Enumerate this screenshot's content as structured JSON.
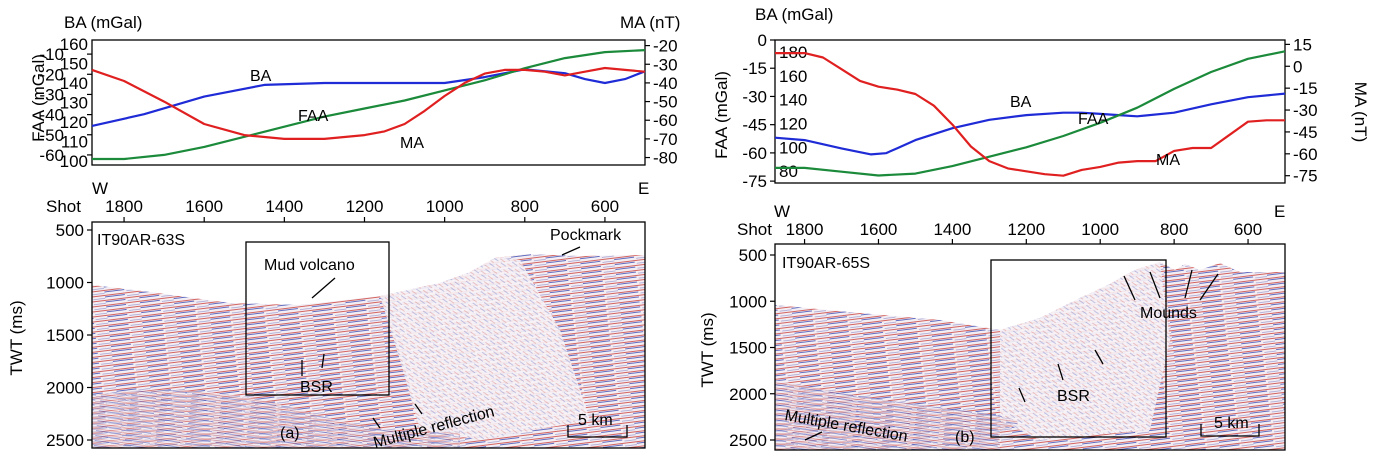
{
  "chart_data": [
    {
      "type": "line",
      "panel": "a",
      "left_axis_outer": {
        "label": "BA (mGal)",
        "ticks": [
          160,
          150,
          140,
          130,
          120,
          110,
          100
        ],
        "range": [
          98,
          162
        ]
      },
      "left_axis_inner": {
        "label": "FAA (mGal)",
        "ticks": [
          -10,
          -20,
          -30,
          -40,
          -50,
          -60
        ],
        "range": [
          -65,
          -3
        ]
      },
      "right_axis": {
        "label": "MA (nT)",
        "ticks": [
          -20,
          -30,
          -40,
          -50,
          -60,
          -70,
          -80
        ],
        "range": [
          -84,
          -17
        ]
      },
      "x_axis": {
        "label": "Shot",
        "ticks": [
          1800,
          1600,
          1400,
          1200,
          1000,
          800,
          600
        ],
        "range": [
          1880,
          500
        ],
        "west": "W",
        "east": "E"
      },
      "series": [
        {
          "name": "BA",
          "color": "#1f2bd6",
          "axis": "ba",
          "x": [
            1880,
            1750,
            1600,
            1450,
            1300,
            1150,
            1000,
            900,
            800,
            700,
            650,
            600,
            550,
            500
          ],
          "values": [
            118,
            124,
            133,
            139,
            140,
            140,
            140,
            143,
            147,
            145,
            142,
            140,
            142,
            146
          ]
        },
        {
          "name": "FAA",
          "color": "#1b8a3a",
          "axis": "faa",
          "x": [
            1880,
            1800,
            1700,
            1600,
            1500,
            1400,
            1300,
            1200,
            1100,
            1000,
            900,
            800,
            700,
            600,
            500
          ],
          "values": [
            -62,
            -62,
            -60,
            -56,
            -51,
            -46,
            -41,
            -37,
            -33,
            -28,
            -23,
            -17,
            -12,
            -9,
            -8
          ]
        },
        {
          "name": "MA",
          "color": "#e02020",
          "axis": "ma",
          "x": [
            1880,
            1800,
            1700,
            1600,
            1500,
            1400,
            1300,
            1200,
            1150,
            1100,
            1050,
            1000,
            950,
            900,
            850,
            800,
            750,
            700,
            650,
            600,
            550,
            500
          ],
          "values": [
            -33,
            -39,
            -50,
            -62,
            -68,
            -70,
            -70,
            -68,
            -66,
            -62,
            -55,
            -47,
            -40,
            -35,
            -33,
            -33,
            -34,
            -36,
            -34,
            -32,
            -33,
            -34
          ]
        }
      ],
      "curve_labels": [
        "BA",
        "FAA",
        "MA"
      ],
      "seismic": {
        "line_id": "IT90AR-63S",
        "y_axis": {
          "label": "TWT (ms)",
          "ticks": [
            500,
            1000,
            1500,
            2000,
            2500
          ]
        },
        "annotations": [
          "Pockmark",
          "Mud volcano",
          "BSR",
          "Multiple reflection"
        ],
        "scale_bar": "5 km",
        "panel_label": "(a)"
      }
    },
    {
      "type": "line",
      "panel": "b",
      "left_axis_outer": {
        "label": "BA (mGal)",
        "ticks": [
          180,
          160,
          140,
          120,
          100,
          80
        ],
        "range": [
          70,
          190
        ]
      },
      "left_axis_inner": {
        "label": "FAA (mGal)",
        "ticks": [
          0,
          -15,
          -30,
          -45,
          -60,
          -75
        ],
        "range": [
          -76,
          0
        ]
      },
      "right_axis": {
        "label": "MA (nT)",
        "ticks": [
          15,
          0,
          -15,
          -30,
          -45,
          -60,
          -75
        ],
        "range": [
          -80,
          18
        ]
      },
      "x_axis": {
        "label": "Shot",
        "ticks": [
          1800,
          1600,
          1400,
          1200,
          1000,
          800,
          600
        ],
        "range": [
          1880,
          500
        ],
        "west": "W",
        "east": "E"
      },
      "series": [
        {
          "name": "BA",
          "color": "#1f2bd6",
          "axis": "ba",
          "x": [
            1880,
            1800,
            1700,
            1620,
            1580,
            1550,
            1500,
            1400,
            1300,
            1200,
            1100,
            1050,
            1000,
            950,
            900,
            800,
            700,
            600,
            500
          ],
          "values": [
            108,
            106,
            99,
            94,
            95,
            99,
            106,
            116,
            123,
            127,
            129,
            129,
            128,
            127,
            126,
            129,
            136,
            142,
            145
          ]
        },
        {
          "name": "FAA",
          "color": "#1b8a3a",
          "axis": "faa",
          "x": [
            1880,
            1800,
            1700,
            1600,
            1500,
            1400,
            1300,
            1200,
            1100,
            1000,
            900,
            800,
            700,
            600,
            500
          ],
          "values": [
            -68,
            -68,
            -70,
            -72,
            -71,
            -67,
            -62,
            -57,
            -51,
            -44,
            -36,
            -26,
            -17,
            -10,
            -6
          ]
        },
        {
          "name": "MA",
          "color": "#e02020",
          "axis": "ma",
          "x": [
            1880,
            1800,
            1750,
            1700,
            1650,
            1600,
            1550,
            1500,
            1450,
            1400,
            1350,
            1300,
            1250,
            1200,
            1150,
            1100,
            1050,
            1000,
            950,
            900,
            850,
            800,
            750,
            700,
            650,
            600,
            550,
            500
          ],
          "values": [
            9,
            9,
            6,
            -2,
            -10,
            -14,
            -16,
            -19,
            -27,
            -40,
            -55,
            -65,
            -70,
            -72,
            -74,
            -75,
            -71,
            -69,
            -66,
            -65,
            -65,
            -58,
            -56,
            -56,
            -47,
            -38,
            -37,
            -37
          ]
        }
      ],
      "curve_labels": [
        "BA",
        "FAA",
        "MA"
      ],
      "seismic": {
        "line_id": "IT90AR-65S",
        "y_axis": {
          "label": "TWT (ms)",
          "ticks": [
            500,
            1000,
            1500,
            2000,
            2500
          ]
        },
        "annotations": [
          "Mounds",
          "BSR",
          "Multiple reflection"
        ],
        "scale_bar": "5 km",
        "panel_label": "(b)"
      }
    }
  ]
}
